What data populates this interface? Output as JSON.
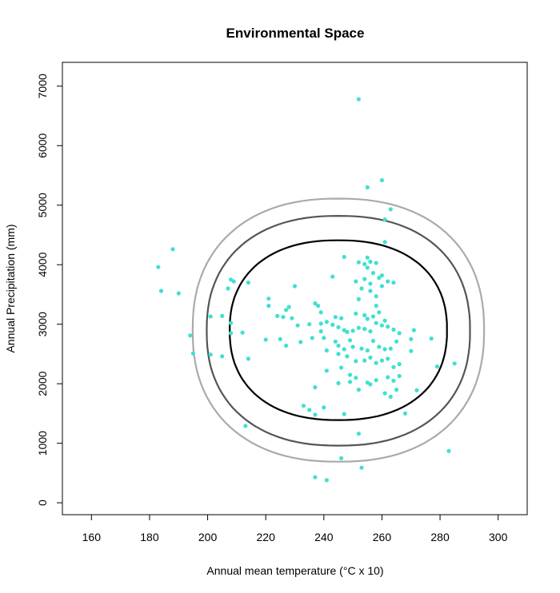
{
  "chart_data": {
    "type": "scatter",
    "title": "Environmental Space",
    "xlabel": "Annual mean temperature (°C x 10)",
    "ylabel": "Annual Precipitation (mm)",
    "xlim": [
      150,
      310
    ],
    "ylim": [
      -200,
      7400
    ],
    "x_ticks": [
      160,
      180,
      200,
      220,
      240,
      260,
      280,
      300
    ],
    "y_ticks": [
      0,
      1000,
      2000,
      3000,
      4000,
      5000,
      6000,
      7000
    ],
    "grid": false,
    "point_color": "#40E0D0",
    "points": [
      [
        252,
        6780
      ],
      [
        260,
        5420
      ],
      [
        255,
        5300
      ],
      [
        263,
        4930
      ],
      [
        261,
        4760
      ],
      [
        261,
        4380
      ],
      [
        188,
        4260
      ],
      [
        247,
        4130
      ],
      [
        255,
        4120
      ],
      [
        183,
        3960
      ],
      [
        252,
        4040
      ],
      [
        254,
        4010
      ],
      [
        256,
        4050
      ],
      [
        258,
        4030
      ],
      [
        255,
        3950
      ],
      [
        243,
        3800
      ],
      [
        257,
        3860
      ],
      [
        260,
        3820
      ],
      [
        262,
        3720
      ],
      [
        259,
        3780
      ],
      [
        254,
        3760
      ],
      [
        264,
        3700
      ],
      [
        256,
        3680
      ],
      [
        260,
        3640
      ],
      [
        251,
        3720
      ],
      [
        208,
        3750
      ],
      [
        209,
        3720
      ],
      [
        214,
        3700
      ],
      [
        230,
        3640
      ],
      [
        184,
        3560
      ],
      [
        190,
        3520
      ],
      [
        207,
        3600
      ],
      [
        253,
        3600
      ],
      [
        256,
        3560
      ],
      [
        258,
        3470
      ],
      [
        252,
        3420
      ],
      [
        221,
        3430
      ],
      [
        228,
        3290
      ],
      [
        227,
        3240
      ],
      [
        221,
        3310
      ],
      [
        237,
        3350
      ],
      [
        238,
        3310
      ],
      [
        239,
        3200
      ],
      [
        244,
        3120
      ],
      [
        246,
        3100
      ],
      [
        251,
        3180
      ],
      [
        254,
        3150
      ],
      [
        255,
        3090
      ],
      [
        257,
        3130
      ],
      [
        258,
        3310
      ],
      [
        259,
        3200
      ],
      [
        261,
        3060
      ],
      [
        201,
        3130
      ],
      [
        205,
        3140
      ],
      [
        224,
        3140
      ],
      [
        226,
        3120
      ],
      [
        229,
        3100
      ],
      [
        231,
        2980
      ],
      [
        235,
        3000
      ],
      [
        239,
        3010
      ],
      [
        241,
        3040
      ],
      [
        243,
        2990
      ],
      [
        245,
        2950
      ],
      [
        247,
        2900
      ],
      [
        248,
        2870
      ],
      [
        250,
        2890
      ],
      [
        252,
        2940
      ],
      [
        254,
        2920
      ],
      [
        256,
        2880
      ],
      [
        258,
        3020
      ],
      [
        260,
        2980
      ],
      [
        262,
        2960
      ],
      [
        264,
        2910
      ],
      [
        266,
        2850
      ],
      [
        271,
        2900
      ],
      [
        208,
        3020
      ],
      [
        212,
        2860
      ],
      [
        194,
        2810
      ],
      [
        208,
        2850
      ],
      [
        220,
        2740
      ],
      [
        225,
        2750
      ],
      [
        227,
        2640
      ],
      [
        232,
        2700
      ],
      [
        236,
        2770
      ],
      [
        239,
        2880
      ],
      [
        240,
        2770
      ],
      [
        244,
        2710
      ],
      [
        245,
        2640
      ],
      [
        247,
        2580
      ],
      [
        249,
        2730
      ],
      [
        250,
        2620
      ],
      [
        253,
        2590
      ],
      [
        255,
        2560
      ],
      [
        257,
        2720
      ],
      [
        259,
        2620
      ],
      [
        261,
        2580
      ],
      [
        263,
        2590
      ],
      [
        265,
        2710
      ],
      [
        270,
        2750
      ],
      [
        277,
        2760
      ],
      [
        195,
        2510
      ],
      [
        201,
        2490
      ],
      [
        205,
        2460
      ],
      [
        214,
        2420
      ],
      [
        241,
        2560
      ],
      [
        245,
        2500
      ],
      [
        248,
        2460
      ],
      [
        251,
        2380
      ],
      [
        254,
        2390
      ],
      [
        256,
        2440
      ],
      [
        258,
        2350
      ],
      [
        260,
        2390
      ],
      [
        262,
        2420
      ],
      [
        264,
        2280
      ],
      [
        266,
        2330
      ],
      [
        270,
        2550
      ],
      [
        279,
        2290
      ],
      [
        285,
        2340
      ],
      [
        241,
        2220
      ],
      [
        246,
        2270
      ],
      [
        249,
        2150
      ],
      [
        251,
        2100
      ],
      [
        255,
        2020
      ],
      [
        258,
        2060
      ],
      [
        262,
        2110
      ],
      [
        264,
        2050
      ],
      [
        266,
        2130
      ],
      [
        237,
        1940
      ],
      [
        245,
        2010
      ],
      [
        249,
        2030
      ],
      [
        252,
        1900
      ],
      [
        256,
        1990
      ],
      [
        261,
        1840
      ],
      [
        263,
        1780
      ],
      [
        265,
        1900
      ],
      [
        272,
        1890
      ],
      [
        233,
        1630
      ],
      [
        235,
        1560
      ],
      [
        237,
        1480
      ],
      [
        240,
        1600
      ],
      [
        247,
        1490
      ],
      [
        268,
        1500
      ],
      [
        213,
        1290
      ],
      [
        252,
        1160
      ],
      [
        283,
        870
      ],
      [
        246,
        750
      ],
      [
        253,
        590
      ],
      [
        237,
        430
      ],
      [
        241,
        380
      ]
    ],
    "contours": [
      {
        "name": "inner",
        "color": "#000000",
        "width": 2.2,
        "cx": 245,
        "cy": 2900,
        "rx": 44,
        "ry": 1510
      },
      {
        "name": "middle",
        "color": "#555555",
        "width": 2.2,
        "cx": 245,
        "cy": 2890,
        "rx": 44,
        "ry": 1930
      },
      {
        "name": "outer",
        "color": "#aaaaaa",
        "width": 2.2,
        "cx": 245,
        "cy": 2900,
        "rx": 44,
        "ry": 2210
      }
    ],
    "contour_bounds": [
      {
        "xmin": 201,
        "xmax": 289
      },
      {
        "xmin": 195,
        "xmax": 295
      }
    ]
  }
}
